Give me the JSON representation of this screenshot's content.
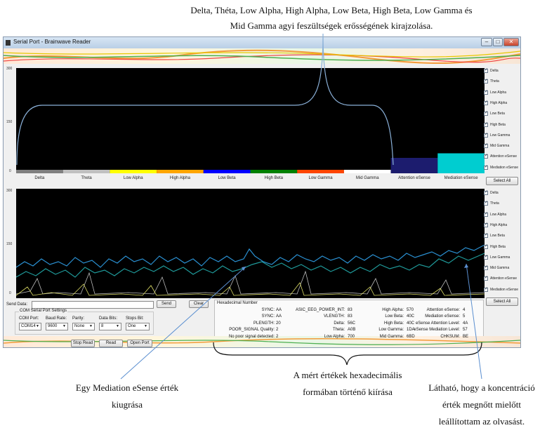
{
  "annotations": {
    "top_line1": "Delta, Théta, Low Alpha, High Alpha, Low Beta, High Beta, Low Gamma és",
    "top_line2": "Mid Gamma agyi feszültségek erősségének kirajzolása.",
    "bottom_left_line1": "Egy Mediation eSense érték",
    "bottom_left_line2": "kiugrása",
    "bottom_mid_line1": "A mért értékek hexadecimális",
    "bottom_mid_line2": "formában történő kiírása",
    "bottom_right_line1": "Látható, hogy a koncentráció",
    "bottom_right_line2": "érték megnőtt mielőtt",
    "bottom_right_line3": "leállítottam az olvasást."
  },
  "window": {
    "title": "Serial Port - Brainwave Reader",
    "minimize": "–",
    "maximize": "□",
    "close": "✕"
  },
  "plots": {
    "y_ticks": [
      "300",
      "150",
      "0"
    ]
  },
  "bar_chart": {
    "categories": [
      "Delta",
      "Theta",
      "Low Alpha",
      "High Alpha",
      "Low Beta",
      "High Beta",
      "Low Gamma",
      "Mid Gamma",
      "Attention eSense",
      "Mediation eSense"
    ],
    "colors": [
      "#808080",
      "#c0c0c0",
      "#ffff00",
      "#ffa500",
      "#0000ff",
      "#008000",
      "#ff4500",
      "#ffffff",
      "#1c1c6e",
      "#00cdd0"
    ]
  },
  "chart_data": {
    "type": "bar",
    "categories": [
      "Delta",
      "Theta",
      "Low Alpha",
      "High Alpha",
      "Low Beta",
      "High Beta",
      "Low Gamma",
      "Mid Gamma",
      "Attention eSense",
      "Mediation eSense"
    ],
    "values": [
      10,
      10,
      10,
      10,
      10,
      10,
      10,
      10,
      44,
      57
    ],
    "ylim": [
      0,
      300
    ],
    "yticks": [
      "300",
      "150",
      "0"
    ]
  },
  "legend_top": [
    "Delta",
    "Theta",
    "Low Alpha",
    "High Alpha",
    "Low Beta",
    "High Beta",
    "Low Gamma",
    "Mid Gamma",
    "Attention eSense",
    "Mediation eSense"
  ],
  "legend_bottom": [
    "Delta",
    "Theta",
    "Low Alpha",
    "High Alpha",
    "Low Beta",
    "High Beta",
    "Low Gamma",
    "Mid Gamma",
    "Attention eSense",
    "Mediation eSense"
  ],
  "select_all": "Select All",
  "send": {
    "label": "Send Data:",
    "value": "",
    "send_button": "Send",
    "clear_button": "Clear"
  },
  "settings": {
    "group_title": "COM Serial Port Settings",
    "com_port_label": "COM Port:",
    "com_port_value": "COM14",
    "baud_label": "Baud Rate:",
    "baud_value": "9600",
    "parity_label": "Parity:",
    "parity_value": "None",
    "databits_label": "Data Bits:",
    "databits_value": "8",
    "stopbits_label": "Stops Bit:",
    "stopbits_value": "One"
  },
  "buttons": {
    "stop_read": "Stop Read",
    "read": "Read",
    "open_port": "Open Port"
  },
  "hex": {
    "title": "Hexadecimal Number",
    "col1": [
      {
        "label": "SYNC:",
        "value": "AA"
      },
      {
        "label": "SYNC:",
        "value": "AA"
      },
      {
        "label": "PLENGTH:",
        "value": "20"
      },
      {
        "label": "POOR_SIGNAL Quality:",
        "value": "2"
      },
      {
        "label": "No poor signal detected:",
        "value": "2"
      }
    ],
    "col2": [
      {
        "label": "ASIC_EEG_POWER_INT:",
        "value": "83"
      },
      {
        "label": "VLENGTH:",
        "value": "83"
      },
      {
        "label": "Delta:",
        "value": "56C"
      },
      {
        "label": "Theta:",
        "value": "A0B"
      },
      {
        "label": "Low Alpha:",
        "value": "700"
      }
    ],
    "col3": [
      {
        "label": "High Alpha:",
        "value": "570"
      },
      {
        "label": "Low Beta:",
        "value": "40C"
      },
      {
        "label": "High Beta:",
        "value": "40C"
      },
      {
        "label": "Low Gamma:",
        "value": "1DA"
      },
      {
        "label": "Mid Gamma:",
        "value": "6BD"
      }
    ],
    "col4": [
      {
        "label": "Attention eSense:",
        "value": "4"
      },
      {
        "label": "Mediation eSense:",
        "value": "5"
      },
      {
        "label": "eSense Attention Level:",
        "value": "4A"
      },
      {
        "label": "eSense Mediation Level:",
        "value": "57"
      },
      {
        "label": "CHKSUM:",
        "value": "BE"
      }
    ]
  }
}
